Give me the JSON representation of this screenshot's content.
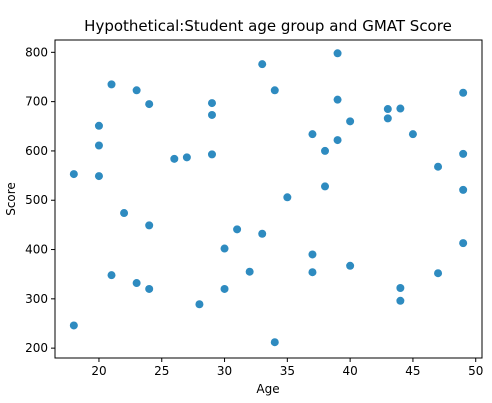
{
  "chart_data": {
    "type": "scatter",
    "title": "Hypothetical:Student age group and GMAT Score",
    "xlabel": "Age",
    "ylabel": "Score",
    "xlim": [
      16.5,
      50.5
    ],
    "ylim": [
      180,
      825
    ],
    "xticks": [
      20,
      25,
      30,
      35,
      40,
      45,
      50
    ],
    "yticks": [
      200,
      300,
      400,
      500,
      600,
      700,
      800
    ],
    "grid": false,
    "marker_color": "#2e8bc0",
    "points": [
      {
        "x": 18,
        "y": 553
      },
      {
        "x": 18,
        "y": 246
      },
      {
        "x": 20,
        "y": 651
      },
      {
        "x": 20,
        "y": 611
      },
      {
        "x": 20,
        "y": 549
      },
      {
        "x": 21,
        "y": 735
      },
      {
        "x": 21,
        "y": 348
      },
      {
        "x": 22,
        "y": 474
      },
      {
        "x": 23,
        "y": 723
      },
      {
        "x": 23,
        "y": 332
      },
      {
        "x": 24,
        "y": 695
      },
      {
        "x": 24,
        "y": 449
      },
      {
        "x": 24,
        "y": 320
      },
      {
        "x": 26,
        "y": 584
      },
      {
        "x": 27,
        "y": 587
      },
      {
        "x": 28,
        "y": 289
      },
      {
        "x": 29,
        "y": 697
      },
      {
        "x": 29,
        "y": 673
      },
      {
        "x": 29,
        "y": 593
      },
      {
        "x": 30,
        "y": 402
      },
      {
        "x": 30,
        "y": 320
      },
      {
        "x": 31,
        "y": 441
      },
      {
        "x": 32,
        "y": 355
      },
      {
        "x": 33,
        "y": 776
      },
      {
        "x": 33,
        "y": 432
      },
      {
        "x": 34,
        "y": 723
      },
      {
        "x": 34,
        "y": 212
      },
      {
        "x": 35,
        "y": 506
      },
      {
        "x": 37,
        "y": 634
      },
      {
        "x": 37,
        "y": 390
      },
      {
        "x": 37,
        "y": 354
      },
      {
        "x": 38,
        "y": 600
      },
      {
        "x": 38,
        "y": 528
      },
      {
        "x": 39,
        "y": 798
      },
      {
        "x": 39,
        "y": 704
      },
      {
        "x": 39,
        "y": 622
      },
      {
        "x": 40,
        "y": 660
      },
      {
        "x": 40,
        "y": 367
      },
      {
        "x": 43,
        "y": 685
      },
      {
        "x": 43,
        "y": 666
      },
      {
        "x": 44,
        "y": 686
      },
      {
        "x": 44,
        "y": 322
      },
      {
        "x": 44,
        "y": 296
      },
      {
        "x": 45,
        "y": 634
      },
      {
        "x": 47,
        "y": 568
      },
      {
        "x": 47,
        "y": 352
      },
      {
        "x": 49,
        "y": 718
      },
      {
        "x": 49,
        "y": 594
      },
      {
        "x": 49,
        "y": 521
      },
      {
        "x": 49,
        "y": 413
      }
    ]
  }
}
